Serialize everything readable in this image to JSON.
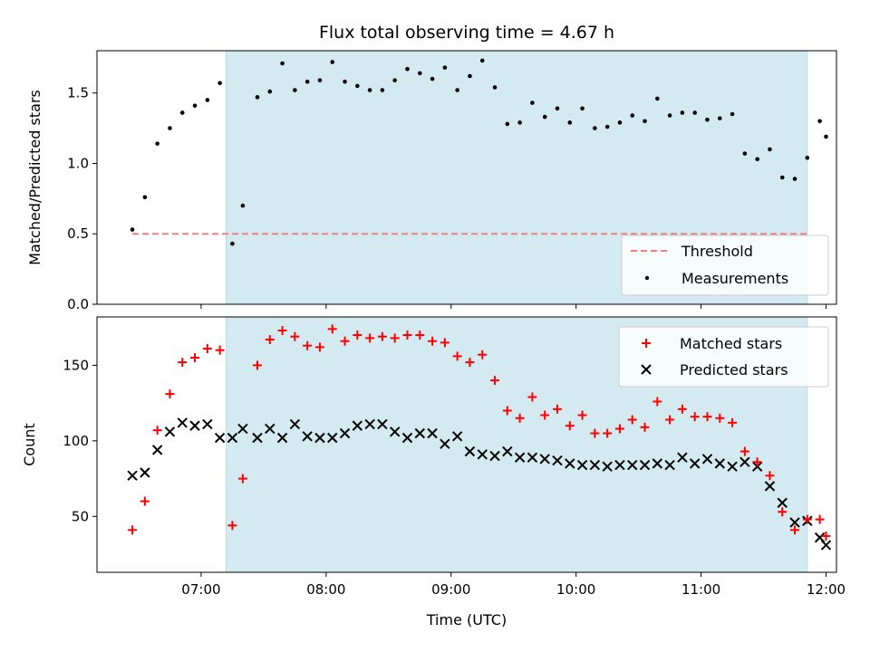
{
  "chart_data": [
    {
      "type": "scatter",
      "title": "Flux total observing time = 4.67 h",
      "ylabel": "Matched/Predicted stars",
      "xlabel": "",
      "xlim": [
        "06:10",
        "12:05"
      ],
      "ylim": [
        0,
        1.8
      ],
      "yticks": [
        0.0,
        0.5,
        1.0,
        1.5
      ],
      "ytick_labels": [
        "0.0",
        "0.5",
        "1.0",
        "1.5"
      ],
      "xticks": [
        "07:00",
        "08:00",
        "09:00",
        "10:00",
        "11:00",
        "12:00"
      ],
      "shaded_interval": [
        "07:12",
        "11:51"
      ],
      "shade_color": "#d3eaf0",
      "legend": {
        "placement": "bottom-right",
        "entries": [
          "Threshold",
          "Measurements"
        ]
      },
      "threshold": {
        "name": "Threshold",
        "value": 0.5,
        "x_range": [
          "06:27",
          "11:51"
        ],
        "color": "#f08080"
      },
      "series": [
        {
          "name": "Measurements",
          "marker": "dot",
          "color": "#000000",
          "points": [
            [
              "06:27",
              0.53
            ],
            [
              "06:33",
              0.76
            ],
            [
              "06:39",
              1.14
            ],
            [
              "06:45",
              1.25
            ],
            [
              "06:51",
              1.36
            ],
            [
              "06:57",
              1.41
            ],
            [
              "07:03",
              1.45
            ],
            [
              "07:09",
              1.57
            ],
            [
              "07:15",
              0.43
            ],
            [
              "07:20",
              0.7
            ],
            [
              "07:27",
              1.47
            ],
            [
              "07:33",
              1.51
            ],
            [
              "07:39",
              1.71
            ],
            [
              "07:45",
              1.52
            ],
            [
              "07:51",
              1.58
            ],
            [
              "07:57",
              1.59
            ],
            [
              "08:03",
              1.72
            ],
            [
              "08:09",
              1.58
            ],
            [
              "08:15",
              1.55
            ],
            [
              "08:21",
              1.52
            ],
            [
              "08:27",
              1.52
            ],
            [
              "08:33",
              1.59
            ],
            [
              "08:39",
              1.67
            ],
            [
              "08:45",
              1.64
            ],
            [
              "08:51",
              1.6
            ],
            [
              "08:57",
              1.68
            ],
            [
              "09:03",
              1.52
            ],
            [
              "09:09",
              1.62
            ],
            [
              "09:15",
              1.73
            ],
            [
              "09:21",
              1.54
            ],
            [
              "09:27",
              1.28
            ],
            [
              "09:33",
              1.29
            ],
            [
              "09:39",
              1.43
            ],
            [
              "09:45",
              1.33
            ],
            [
              "09:51",
              1.39
            ],
            [
              "09:57",
              1.29
            ],
            [
              "10:03",
              1.39
            ],
            [
              "10:09",
              1.25
            ],
            [
              "10:15",
              1.26
            ],
            [
              "10:21",
              1.29
            ],
            [
              "10:27",
              1.34
            ],
            [
              "10:33",
              1.3
            ],
            [
              "10:39",
              1.46
            ],
            [
              "10:45",
              1.34
            ],
            [
              "10:51",
              1.36
            ],
            [
              "10:57",
              1.36
            ],
            [
              "11:03",
              1.31
            ],
            [
              "11:09",
              1.32
            ],
            [
              "11:15",
              1.35
            ],
            [
              "11:21",
              1.07
            ],
            [
              "11:27",
              1.03
            ],
            [
              "11:33",
              1.1
            ],
            [
              "11:39",
              0.9
            ],
            [
              "11:45",
              0.89
            ],
            [
              "11:51",
              1.04
            ],
            [
              "11:57",
              1.3
            ],
            [
              "12:00",
              1.19
            ]
          ]
        }
      ]
    },
    {
      "type": "scatter",
      "title": "",
      "ylabel": "Count",
      "xlabel": "Time (UTC)",
      "xlim": [
        "06:10",
        "12:05"
      ],
      "ylim": [
        13,
        182
      ],
      "yticks": [
        50,
        100,
        150
      ],
      "ytick_labels": [
        "50",
        "100",
        "150"
      ],
      "xticks": [
        "07:00",
        "08:00",
        "09:00",
        "10:00",
        "11:00",
        "12:00"
      ],
      "shaded_interval": [
        "07:12",
        "11:51"
      ],
      "shade_color": "#d3eaf0",
      "legend": {
        "placement": "top-right",
        "entries": [
          "Matched stars",
          "Predicted stars"
        ]
      },
      "series": [
        {
          "name": "Matched stars",
          "marker": "plus",
          "color": "#ff0000",
          "points": [
            [
              "06:27",
              41
            ],
            [
              "06:33",
              60
            ],
            [
              "06:39",
              107
            ],
            [
              "06:45",
              131
            ],
            [
              "06:51",
              152
            ],
            [
              "06:57",
              155
            ],
            [
              "07:03",
              161
            ],
            [
              "07:09",
              160
            ],
            [
              "07:15",
              44
            ],
            [
              "07:20",
              75
            ],
            [
              "07:27",
              150
            ],
            [
              "07:33",
              167
            ],
            [
              "07:39",
              173
            ],
            [
              "07:45",
              169
            ],
            [
              "07:51",
              163
            ],
            [
              "07:57",
              162
            ],
            [
              "08:03",
              174
            ],
            [
              "08:09",
              166
            ],
            [
              "08:15",
              170
            ],
            [
              "08:21",
              168
            ],
            [
              "08:27",
              169
            ],
            [
              "08:33",
              168
            ],
            [
              "08:39",
              170
            ],
            [
              "08:45",
              170
            ],
            [
              "08:51",
              166
            ],
            [
              "08:57",
              165
            ],
            [
              "09:03",
              156
            ],
            [
              "09:09",
              152
            ],
            [
              "09:15",
              157
            ],
            [
              "09:21",
              140
            ],
            [
              "09:27",
              120
            ],
            [
              "09:33",
              115
            ],
            [
              "09:39",
              129
            ],
            [
              "09:45",
              117
            ],
            [
              "09:51",
              121
            ],
            [
              "09:57",
              110
            ],
            [
              "10:03",
              117
            ],
            [
              "10:09",
              105
            ],
            [
              "10:15",
              105
            ],
            [
              "10:21",
              108
            ],
            [
              "10:27",
              114
            ],
            [
              "10:33",
              109
            ],
            [
              "10:39",
              126
            ],
            [
              "10:45",
              114
            ],
            [
              "10:51",
              121
            ],
            [
              "10:57",
              116
            ],
            [
              "11:03",
              116
            ],
            [
              "11:09",
              115
            ],
            [
              "11:15",
              112
            ],
            [
              "11:21",
              93
            ],
            [
              "11:27",
              86
            ],
            [
              "11:33",
              77
            ],
            [
              "11:39",
              53
            ],
            [
              "11:45",
              41
            ],
            [
              "11:51",
              48
            ],
            [
              "11:57",
              48
            ],
            [
              "12:00",
              37
            ]
          ]
        },
        {
          "name": "Predicted stars",
          "marker": "x",
          "color": "#000000",
          "points": [
            [
              "06:27",
              77
            ],
            [
              "06:33",
              79
            ],
            [
              "06:39",
              94
            ],
            [
              "06:45",
              106
            ],
            [
              "06:51",
              112
            ],
            [
              "06:57",
              110
            ],
            [
              "07:03",
              111
            ],
            [
              "07:09",
              102
            ],
            [
              "07:15",
              102
            ],
            [
              "07:20",
              108
            ],
            [
              "07:27",
              102
            ],
            [
              "07:33",
              108
            ],
            [
              "07:39",
              102
            ],
            [
              "07:45",
              111
            ],
            [
              "07:51",
              103
            ],
            [
              "07:57",
              102
            ],
            [
              "08:03",
              102
            ],
            [
              "08:09",
              105
            ],
            [
              "08:15",
              110
            ],
            [
              "08:21",
              111
            ],
            [
              "08:27",
              111
            ],
            [
              "08:33",
              106
            ],
            [
              "08:39",
              102
            ],
            [
              "08:45",
              105
            ],
            [
              "08:51",
              105
            ],
            [
              "08:57",
              98
            ],
            [
              "09:03",
              103
            ],
            [
              "09:09",
              93
            ],
            [
              "09:15",
              91
            ],
            [
              "09:21",
              90
            ],
            [
              "09:27",
              93
            ],
            [
              "09:33",
              89
            ],
            [
              "09:39",
              89
            ],
            [
              "09:45",
              88
            ],
            [
              "09:51",
              87
            ],
            [
              "09:57",
              85
            ],
            [
              "10:03",
              84
            ],
            [
              "10:09",
              84
            ],
            [
              "10:15",
              83
            ],
            [
              "10:21",
              84
            ],
            [
              "10:27",
              84
            ],
            [
              "10:33",
              84
            ],
            [
              "10:39",
              85
            ],
            [
              "10:45",
              84
            ],
            [
              "10:51",
              89
            ],
            [
              "10:57",
              85
            ],
            [
              "11:03",
              88
            ],
            [
              "11:09",
              85
            ],
            [
              "11:15",
              83
            ],
            [
              "11:21",
              86
            ],
            [
              "11:27",
              83
            ],
            [
              "11:33",
              70
            ],
            [
              "11:39",
              59
            ],
            [
              "11:45",
              46
            ],
            [
              "11:51",
              47
            ],
            [
              "11:57",
              36
            ],
            [
              "12:00",
              31
            ]
          ]
        }
      ]
    }
  ]
}
